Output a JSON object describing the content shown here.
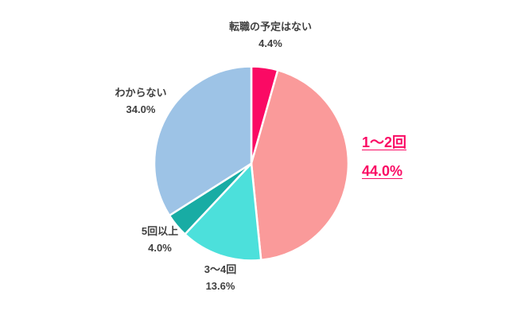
{
  "chart_data": {
    "type": "pie",
    "title": "",
    "categories": [
      "転職の予定はない",
      "1〜2回",
      "3〜4回",
      "5回以上",
      "わからない"
    ],
    "values": [
      4.4,
      44.0,
      13.6,
      4.0,
      34.0
    ],
    "unit": "%",
    "colors": [
      "#FA0A64",
      "#FA9A9A",
      "#4CE0DB",
      "#18ACA4",
      "#9DC3E6"
    ],
    "start_angle_deg": 0,
    "direction": "clockwise",
    "legend": "none",
    "label_style": "outside-two-line",
    "background": "#ffffff",
    "label_text_color": "#404040",
    "highlight": {
      "label": "1〜2回",
      "color": "#FA0A64",
      "underline": true
    }
  },
  "pie_labels": {
    "no_plan": {
      "name": "転職の予定はない",
      "pct": "4.4%"
    },
    "one_two": {
      "name": "1〜2回",
      "pct": "44.0%"
    },
    "three_four": {
      "name": "3〜4回",
      "pct": "13.6%"
    },
    "five_plus": {
      "name": "5回以上",
      "pct": "4.0%"
    },
    "wakaranai": {
      "name": "わからない",
      "pct": "34.0%"
    }
  }
}
